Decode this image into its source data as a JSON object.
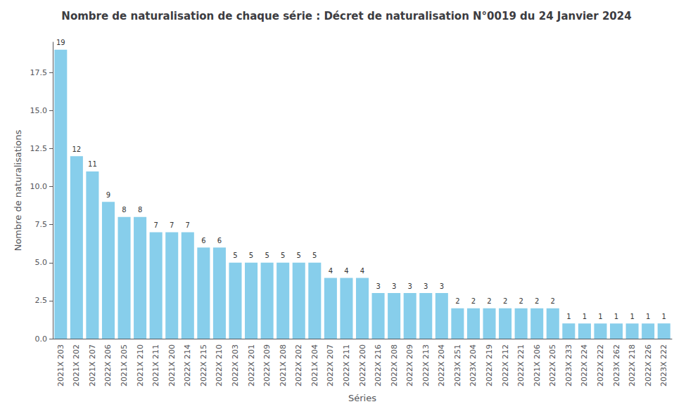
{
  "chart_data": {
    "type": "bar",
    "title": "Nombre de naturalisation de chaque série : Décret de naturalisation N°0019 du 24 Janvier 2024",
    "xlabel": "Séries",
    "ylabel": "Nombre de naturalisations",
    "categories": [
      "2021X 203",
      "2021X 202",
      "2021X 207",
      "2022X 206",
      "2021X 205",
      "2021X 210",
      "2021X 211",
      "2021X 200",
      "2022X 214",
      "2022X 215",
      "2022X 210",
      "2022X 203",
      "2022X 201",
      "2022X 209",
      "2021X 208",
      "2022X 202",
      "2021X 204",
      "2022X 207",
      "2022X 211",
      "2022X 200",
      "2022X 216",
      "2022X 208",
      "2022X 209",
      "2022X 213",
      "2022X 204",
      "2023X 251",
      "2023X 204",
      "2022X 219",
      "2022X 212",
      "2022X 221",
      "2021X 206",
      "2022X 205",
      "2023X 233",
      "2022X 224",
      "2022X 222",
      "2023X 262",
      "2022X 218",
      "2022X 226",
      "2023X 222"
    ],
    "values": [
      19,
      12,
      11,
      9,
      8,
      8,
      7,
      7,
      7,
      6,
      6,
      5,
      5,
      5,
      5,
      5,
      5,
      4,
      4,
      4,
      3,
      3,
      3,
      3,
      3,
      2,
      2,
      2,
      2,
      2,
      2,
      2,
      1,
      1,
      1,
      1,
      1,
      1,
      1
    ],
    "color": "#87CEEB",
    "ylim": [
      0,
      19.5
    ],
    "yticks": [
      {
        "value": 0,
        "label": "0.0"
      },
      2.5,
      {
        "value": 5,
        "label": "5.0"
      },
      7.5,
      {
        "value": 10,
        "label": "10.0"
      },
      12.5,
      {
        "value": 15,
        "label": "15.0"
      },
      17.5
    ],
    "data_labels": true,
    "grid": false
  }
}
